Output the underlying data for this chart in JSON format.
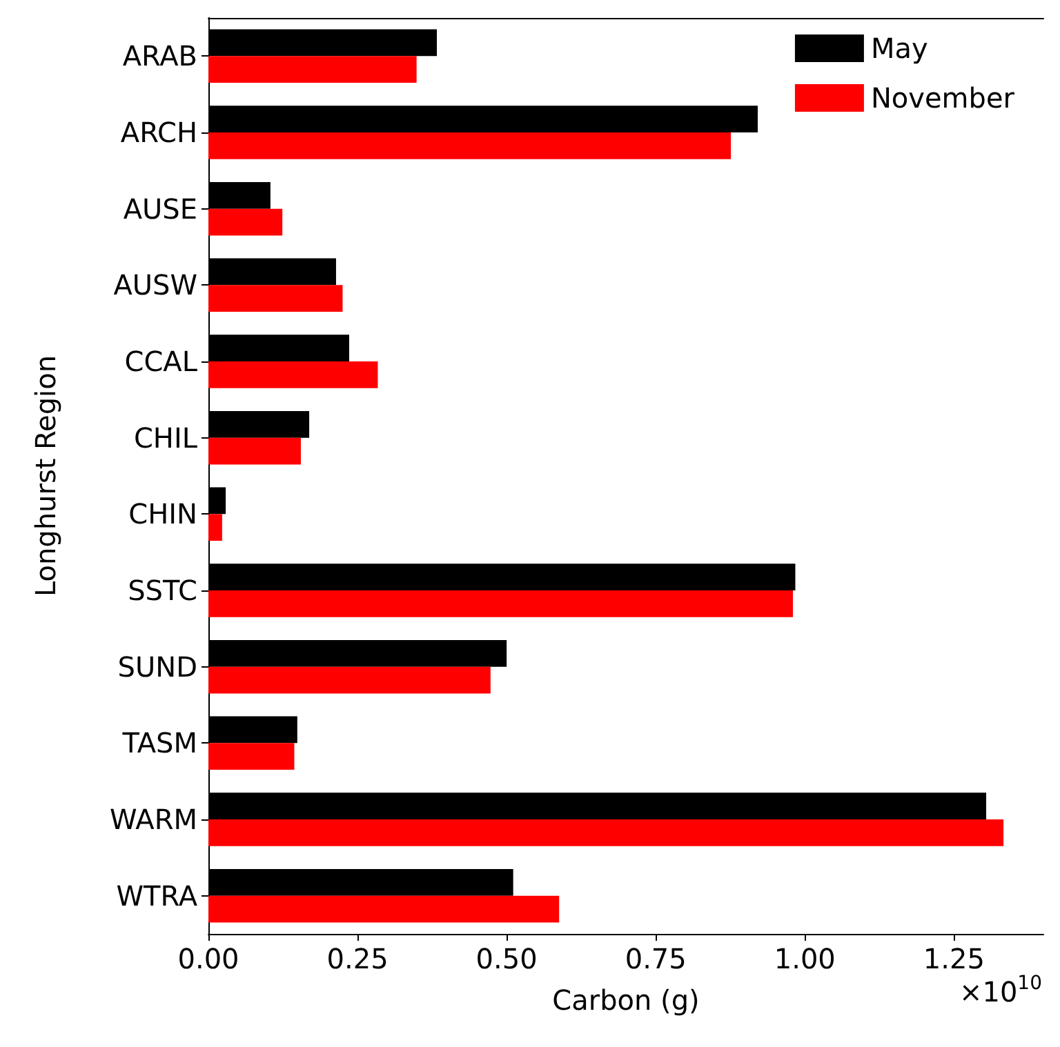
{
  "chart_data": {
    "type": "bar",
    "orientation": "horizontal",
    "xlabel": "Carbon (g)",
    "ylabel": "Longhurst Region",
    "categories": [
      "ARAB",
      "ARCH",
      "AUSE",
      "AUSW",
      "CCAL",
      "CHIL",
      "CHIN",
      "SSTC",
      "SUND",
      "TASM",
      "WARM",
      "WTRA"
    ],
    "series": [
      {
        "name": "May",
        "color": "#000000",
        "values": [
          0.383,
          0.921,
          0.104,
          0.214,
          0.236,
          0.169,
          0.029,
          0.984,
          0.5,
          0.149,
          1.304,
          0.511
        ]
      },
      {
        "name": "November",
        "color": "#ff0000",
        "values": [
          0.349,
          0.876,
          0.124,
          0.225,
          0.284,
          0.155,
          0.023,
          0.98,
          0.473,
          0.144,
          1.333,
          0.588
        ]
      }
    ],
    "xlim": [
      0,
      1.4
    ],
    "xticks": [
      {
        "value": 0,
        "label": "0.00"
      },
      {
        "value": 0.25,
        "label": "0.25"
      },
      {
        "value": 0.5,
        "label": "0.50"
      },
      {
        "value": 0.75,
        "label": "0.75"
      },
      {
        "value": 1,
        "label": "1.00"
      },
      {
        "value": 1.25,
        "label": "1.25"
      }
    ],
    "annotations": [
      "×10$^{10}$"
    ],
    "legend": "top right",
    "grid": false
  }
}
